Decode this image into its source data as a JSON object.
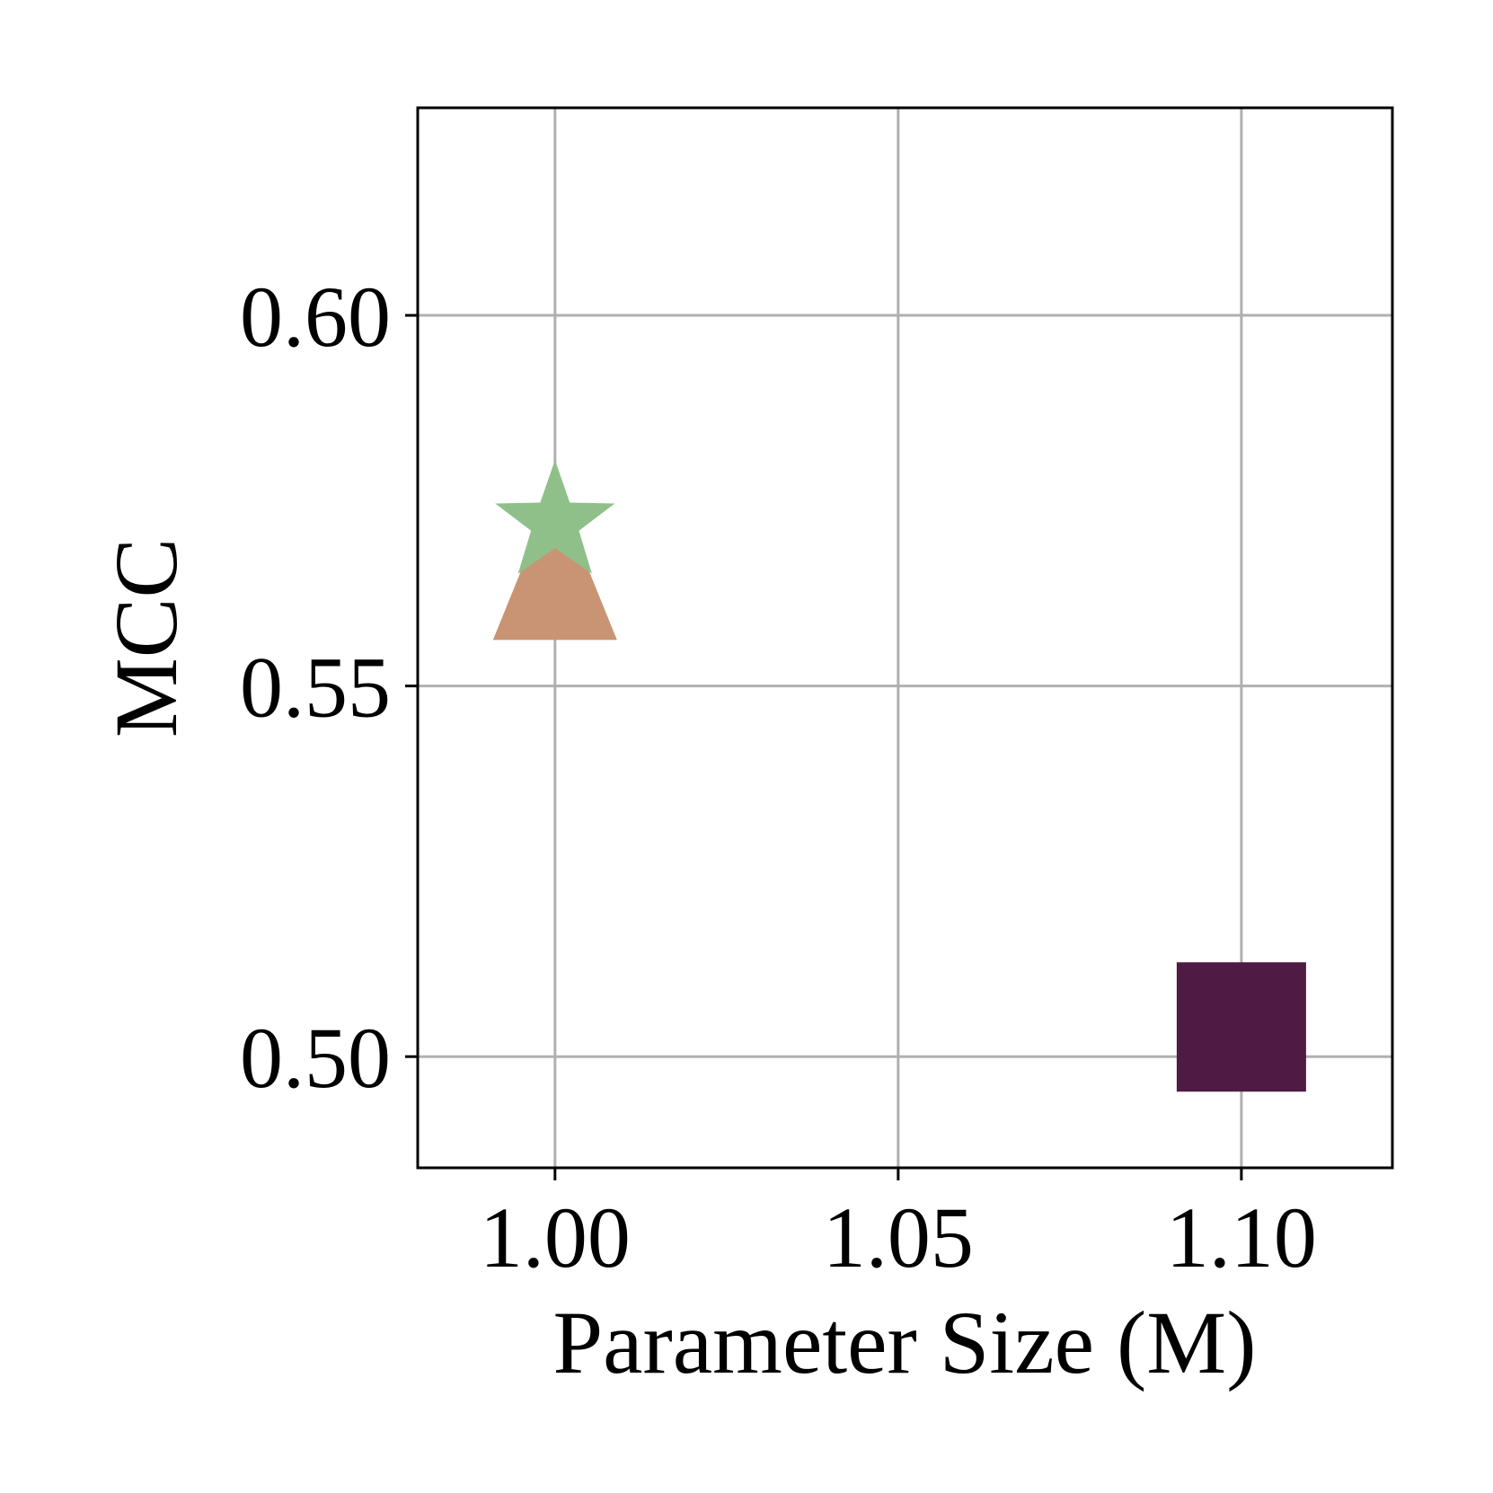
{
  "chart_data": {
    "type": "scatter",
    "title": "",
    "xlabel": "Parameter Size (M)",
    "ylabel": "MCC",
    "xlim": [
      0.98,
      1.122
    ],
    "ylim": [
      0.485,
      0.628
    ],
    "xticks": [
      1.0,
      1.05,
      1.1
    ],
    "xtick_labels": [
      "1.00",
      "1.05",
      "1.10"
    ],
    "yticks": [
      0.5,
      0.55,
      0.6
    ],
    "ytick_labels": [
      "0.50",
      "0.55",
      "0.60"
    ],
    "grid": true,
    "legend": false,
    "points": [
      {
        "x": 1.1,
        "y": 0.504,
        "marker": "square",
        "color": "#4f1a44"
      },
      {
        "x": 1.0,
        "y": 0.563,
        "marker": "triangle",
        "color": "#c99474"
      },
      {
        "x": 1.0,
        "y": 0.572,
        "marker": "star",
        "color": "#8fc08a"
      }
    ]
  }
}
